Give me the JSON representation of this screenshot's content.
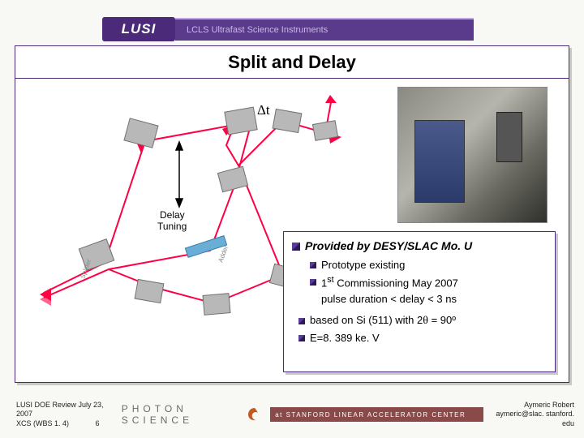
{
  "header": {
    "logo_text": "LUSI",
    "subtitle": "LCLS Ultrafast Science Instruments"
  },
  "slide": {
    "title": "Split and Delay",
    "diagram": {
      "type": "optical-path-schematic",
      "delta_label": "Δt",
      "tuning_label": "Delay Tuning",
      "beam_color": "#ff0044",
      "crystal_color": "#a0a0a0",
      "tube_color": "#6aaed6",
      "background": "#ffffff"
    },
    "photo": {
      "alt": "laboratory apparatus photo",
      "dominant_color": "#707068"
    },
    "infobox": {
      "heading": "Provided by DESY/SLAC Mo. U",
      "sub_items": [
        {
          "text": "Prototype existing"
        },
        {
          "text_html": "1<sup>st</sup> Commissioning May 2007"
        }
      ],
      "constraint": "pulse duration < delay < 3 ns",
      "main_items": [
        {
          "text_html": "based on Si (511) with  2<span class='theta'>θ</span> = 90º"
        },
        {
          "text": "E=8. 389 ke. V"
        }
      ],
      "bullet_color": "#4b2a7a",
      "border_color": "#4b2a7a"
    }
  },
  "footer": {
    "left_line1": "LUSI DOE Review July 23, 2007",
    "left_line2": "XCS (WBS 1. 4)             6",
    "center_label": "PHOTON SCIENCE",
    "slac_text": "at  STANFORD LINEAR ACCELERATOR CENTER",
    "right_line1": "Aymeric Robert",
    "right_line2": "aymeric@slac. stanford. edu"
  },
  "colors": {
    "purple": "#4b2a7a",
    "purple_light": "#5a3a8a",
    "slac_red": "#8b4a4a",
    "shadow": "#c8c8c8"
  }
}
